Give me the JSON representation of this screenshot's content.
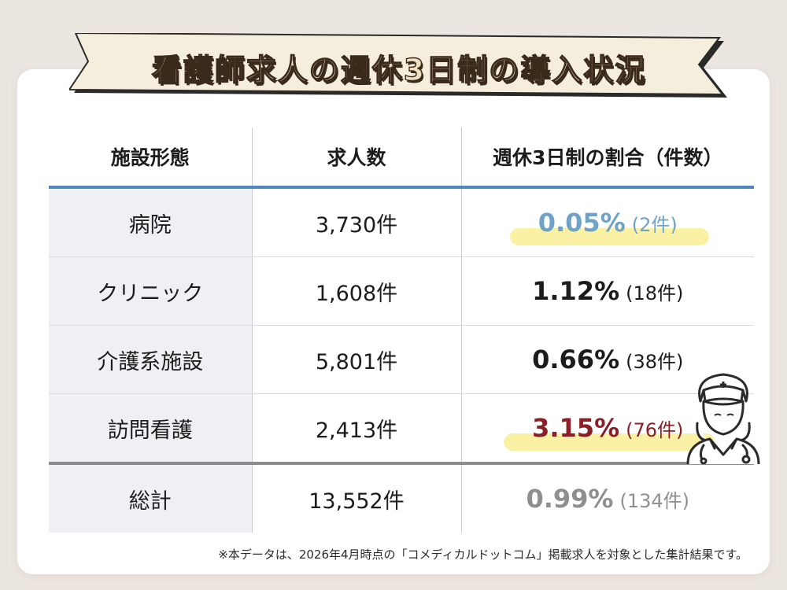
{
  "title": "看護師求人の週休3日制の導入状況",
  "table": {
    "headers": [
      "施設形態",
      "求人数",
      "週休3日制の割合（件数）"
    ],
    "rows": [
      {
        "facility": "病院",
        "jobs": "3,730件",
        "pct": "0.05%",
        "count": "(2件)",
        "style": "blue",
        "highlight": true
      },
      {
        "facility": "クリニック",
        "jobs": "1,608件",
        "pct": "1.12%",
        "count": "(18件)",
        "style": "dark",
        "highlight": false
      },
      {
        "facility": "介護系施設",
        "jobs": "5,801件",
        "pct": "0.66%",
        "count": "(38件)",
        "style": "dark",
        "highlight": false
      },
      {
        "facility": "訪問看護",
        "jobs": "2,413件",
        "pct": "3.15%",
        "count": "(76件)",
        "style": "red",
        "highlight": true
      }
    ],
    "total": {
      "facility": "総計",
      "jobs": "13,552件",
      "pct": "0.99%",
      "count": "(134件)",
      "style": "gray"
    }
  },
  "footnote": "※本データは、2026年4月時点の「コメディカルドットコム」掲載求人を対象とした集計結果です。",
  "icons": {
    "illustration": "nurse-icon"
  },
  "colors": {
    "header_rule": "#4f87bd",
    "highlight": "#fbef9a",
    "pct_blue": "#6ea2c7",
    "pct_red": "#8a1f26",
    "pct_gray": "#8f8f8f",
    "banner_fill": "#f6eedd"
  }
}
